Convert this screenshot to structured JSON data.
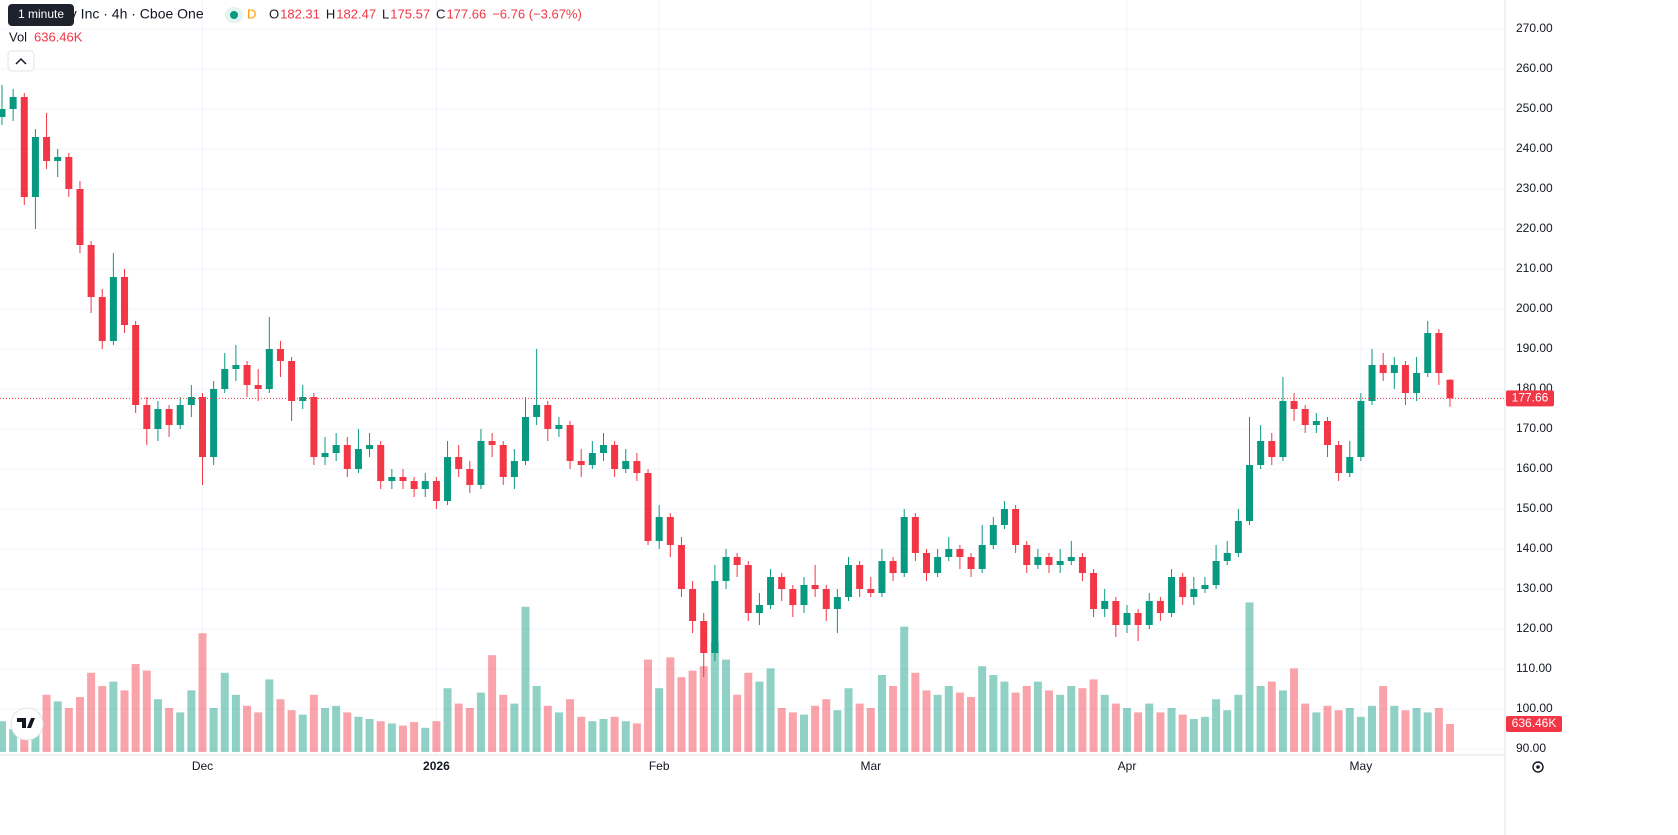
{
  "tooltip": "1 minute",
  "chart_data": {
    "type": "candlestick",
    "title": "gy Inc · 4h · Cboe One",
    "badge": "D",
    "ohlc_prefixes": [
      "O",
      "H",
      "L",
      "C"
    ],
    "change_label": "−6.76 (−3.67%)",
    "volume_title": "Vol",
    "volume_label": "636.46K",
    "up_color": "#089981",
    "down_color": "#f23645",
    "ylim": [
      88.5,
      277.25
    ],
    "yticks": [
      {
        "value": 90,
        "label": "90.00"
      },
      {
        "value": 100,
        "label": "100.00"
      },
      {
        "value": 110,
        "label": "110.00"
      },
      {
        "value": 120,
        "label": "120.00"
      },
      {
        "value": 130,
        "label": "130.00"
      },
      {
        "value": 140,
        "label": "140.00"
      },
      {
        "value": 150,
        "label": "150.00"
      },
      {
        "value": 160,
        "label": "160.00"
      },
      {
        "value": 170,
        "label": "170.00"
      },
      {
        "value": 180,
        "label": "180.00"
      },
      {
        "value": 190,
        "label": "190.00"
      },
      {
        "value": 200,
        "label": "200.00"
      },
      {
        "value": 210,
        "label": "210.00"
      },
      {
        "value": 220,
        "label": "220.00"
      },
      {
        "value": 230,
        "label": "230.00"
      },
      {
        "value": 240,
        "label": "240.00"
      },
      {
        "value": 250,
        "label": "250.00"
      },
      {
        "value": 260,
        "label": "260.00"
      },
      {
        "value": 270,
        "label": "270.00"
      }
    ],
    "grid": true,
    "categories": [
      null,
      null,
      null,
      null,
      null,
      null,
      null,
      null,
      null,
      null,
      null,
      null,
      null,
      null,
      null,
      null,
      null,
      null,
      "Dec",
      null,
      null,
      null,
      null,
      null,
      null,
      null,
      null,
      null,
      null,
      null,
      null,
      null,
      null,
      null,
      null,
      null,
      null,
      null,
      null,
      "2026",
      null,
      null,
      null,
      null,
      null,
      null,
      null,
      null,
      null,
      null,
      null,
      null,
      null,
      null,
      null,
      null,
      null,
      null,
      null,
      "Feb",
      null,
      null,
      null,
      null,
      null,
      null,
      null,
      null,
      null,
      null,
      null,
      null,
      null,
      null,
      null,
      null,
      null,
      null,
      "Mar",
      null,
      null,
      null,
      null,
      null,
      null,
      null,
      null,
      null,
      null,
      null,
      null,
      null,
      null,
      null,
      null,
      null,
      null,
      null,
      null,
      null,
      null,
      "Apr",
      null,
      null,
      null,
      null,
      null,
      null,
      null,
      null,
      null,
      null,
      null,
      null,
      null,
      null,
      null,
      null,
      null,
      null,
      null,
      null,
      "May",
      null,
      null,
      null,
      null,
      null,
      null,
      null,
      null
    ],
    "open": [
      248,
      250,
      253,
      228,
      243,
      237,
      238,
      230,
      216,
      203,
      192,
      208,
      196,
      176,
      170,
      175,
      171,
      176,
      178,
      163,
      180,
      185,
      186,
      181,
      180,
      190,
      187,
      177,
      178,
      163,
      164,
      166,
      160,
      165,
      166,
      157,
      158,
      157,
      155,
      157,
      152,
      163,
      160,
      156,
      167,
      166,
      158,
      162,
      173,
      176,
      170,
      171,
      162,
      161,
      164,
      166,
      160,
      162,
      159,
      142,
      148,
      141,
      130,
      122,
      114,
      132,
      138,
      136,
      124,
      126,
      133,
      130,
      126,
      131,
      130,
      125,
      128,
      136,
      130,
      129,
      137,
      134,
      148,
      139,
      134,
      138,
      140,
      138,
      135,
      141,
      146,
      150,
      141,
      136,
      138,
      136,
      137,
      138,
      134,
      125,
      127,
      121,
      124,
      121,
      127,
      124,
      133,
      128,
      130,
      131,
      137,
      139,
      147,
      161,
      167,
      163,
      177,
      175,
      171,
      172,
      166,
      159,
      163,
      177,
      186,
      184,
      186,
      179,
      184,
      194,
      182.31
    ],
    "high": [
      256,
      255,
      254,
      245,
      249,
      240,
      239,
      232,
      217,
      205,
      214,
      210,
      197,
      178,
      177,
      176,
      178,
      181,
      179,
      182,
      189,
      191,
      187,
      185,
      198,
      192,
      188,
      181,
      179,
      168,
      169,
      168,
      170,
      169,
      167,
      160,
      160,
      158,
      159,
      158,
      167,
      166,
      162,
      170,
      169,
      167,
      165,
      178,
      190,
      177,
      173,
      172,
      165,
      167,
      169,
      167,
      165,
      164,
      160,
      151,
      149,
      143,
      132,
      124,
      136,
      140,
      139,
      137,
      129,
      135,
      134,
      131,
      133,
      136,
      131,
      130,
      138,
      137,
      133,
      140,
      138,
      150,
      149,
      140,
      140,
      143,
      141,
      139,
      146,
      148,
      152,
      151,
      142,
      140,
      139,
      140,
      142,
      139,
      135,
      130,
      128,
      126,
      125,
      129,
      128,
      135,
      134,
      133,
      133,
      141,
      142,
      150,
      173,
      171,
      169,
      183,
      179,
      176,
      174,
      173,
      167,
      167,
      179,
      190,
      189,
      188,
      187,
      188,
      197,
      195,
      182.47
    ],
    "low": [
      246,
      247,
      226,
      220,
      235,
      233,
      228,
      214,
      199,
      190,
      191,
      194,
      174,
      166,
      167,
      168,
      170,
      173,
      156,
      161,
      179,
      182,
      178,
      177,
      179,
      183,
      172,
      175,
      161,
      161,
      162,
      158,
      159,
      163,
      155,
      155,
      155,
      153,
      153,
      150,
      151,
      158,
      154,
      155,
      163,
      156,
      155,
      161,
      171,
      167,
      168,
      160,
      158,
      160,
      162,
      158,
      159,
      157,
      141,
      140,
      138,
      128,
      119,
      108,
      112,
      130,
      133,
      122,
      121,
      125,
      127,
      123,
      124,
      128,
      122,
      119,
      127,
      128,
      128,
      128,
      132,
      133,
      137,
      132,
      133,
      137,
      135,
      133,
      134,
      140,
      145,
      139,
      134,
      135,
      134,
      134,
      136,
      132,
      123,
      123,
      118,
      119,
      117,
      120,
      122,
      123,
      126,
      126,
      129,
      130,
      136,
      138,
      146,
      160,
      161,
      162,
      172,
      169,
      169,
      163,
      157,
      158,
      162,
      176,
      182,
      180,
      176,
      177,
      183,
      181,
      175.57
    ],
    "close": [
      250,
      253,
      228,
      243,
      237,
      238,
      230,
      216,
      203,
      192,
      208,
      196,
      176,
      170,
      175,
      171,
      176,
      178,
      163,
      180,
      185,
      186,
      181,
      180,
      190,
      187,
      177,
      178,
      163,
      164,
      166,
      160,
      165,
      166,
      157,
      158,
      157,
      155,
      157,
      152,
      163,
      160,
      156,
      167,
      166,
      158,
      162,
      173,
      176,
      170,
      171,
      162,
      161,
      164,
      166,
      160,
      162,
      159,
      142,
      148,
      141,
      130,
      122,
      114,
      132,
      138,
      136,
      124,
      126,
      133,
      130,
      126,
      131,
      130,
      125,
      128,
      136,
      130,
      129,
      137,
      134,
      148,
      139,
      134,
      138,
      140,
      138,
      135,
      141,
      146,
      150,
      141,
      136,
      138,
      136,
      137,
      138,
      134,
      125,
      127,
      121,
      124,
      121,
      127,
      124,
      133,
      128,
      130,
      131,
      137,
      139,
      147,
      161,
      167,
      163,
      177,
      175,
      171,
      172,
      166,
      159,
      163,
      177,
      186,
      184,
      186,
      179,
      184,
      194,
      184,
      177.66
    ],
    "volume": [
      700,
      520,
      640,
      900,
      1300,
      1150,
      1000,
      1250,
      1800,
      1500,
      1600,
      1400,
      2000,
      1850,
      1200,
      1000,
      900,
      1400,
      2700,
      1000,
      1800,
      1300,
      1050,
      900,
      1650,
      1200,
      950,
      850,
      1300,
      1000,
      1050,
      900,
      800,
      750,
      700,
      650,
      600,
      680,
      550,
      700,
      1450,
      1100,
      1000,
      1350,
      2200,
      1300,
      1100,
      3300,
      1500,
      1050,
      900,
      1200,
      800,
      700,
      750,
      800,
      700,
      650,
      2100,
      1450,
      2150,
      1700,
      1850,
      1950,
      2500,
      2100,
      1300,
      1800,
      1600,
      1900,
      1000,
      900,
      850,
      1050,
      1200,
      950,
      1450,
      1100,
      1000,
      1750,
      1500,
      2850,
      1800,
      1400,
      1300,
      1500,
      1350,
      1250,
      1950,
      1750,
      1600,
      1350,
      1500,
      1600,
      1400,
      1300,
      1500,
      1450,
      1650,
      1300,
      1100,
      1000,
      900,
      1100,
      900,
      1000,
      850,
      750,
      800,
      1200,
      950,
      1300,
      3400,
      1500,
      1600,
      1400,
      1900,
      1100,
      900,
      1050,
      950,
      1000,
      800,
      1050,
      1500,
      1050,
      950,
      1000,
      900,
      1000,
      636.46
    ]
  }
}
